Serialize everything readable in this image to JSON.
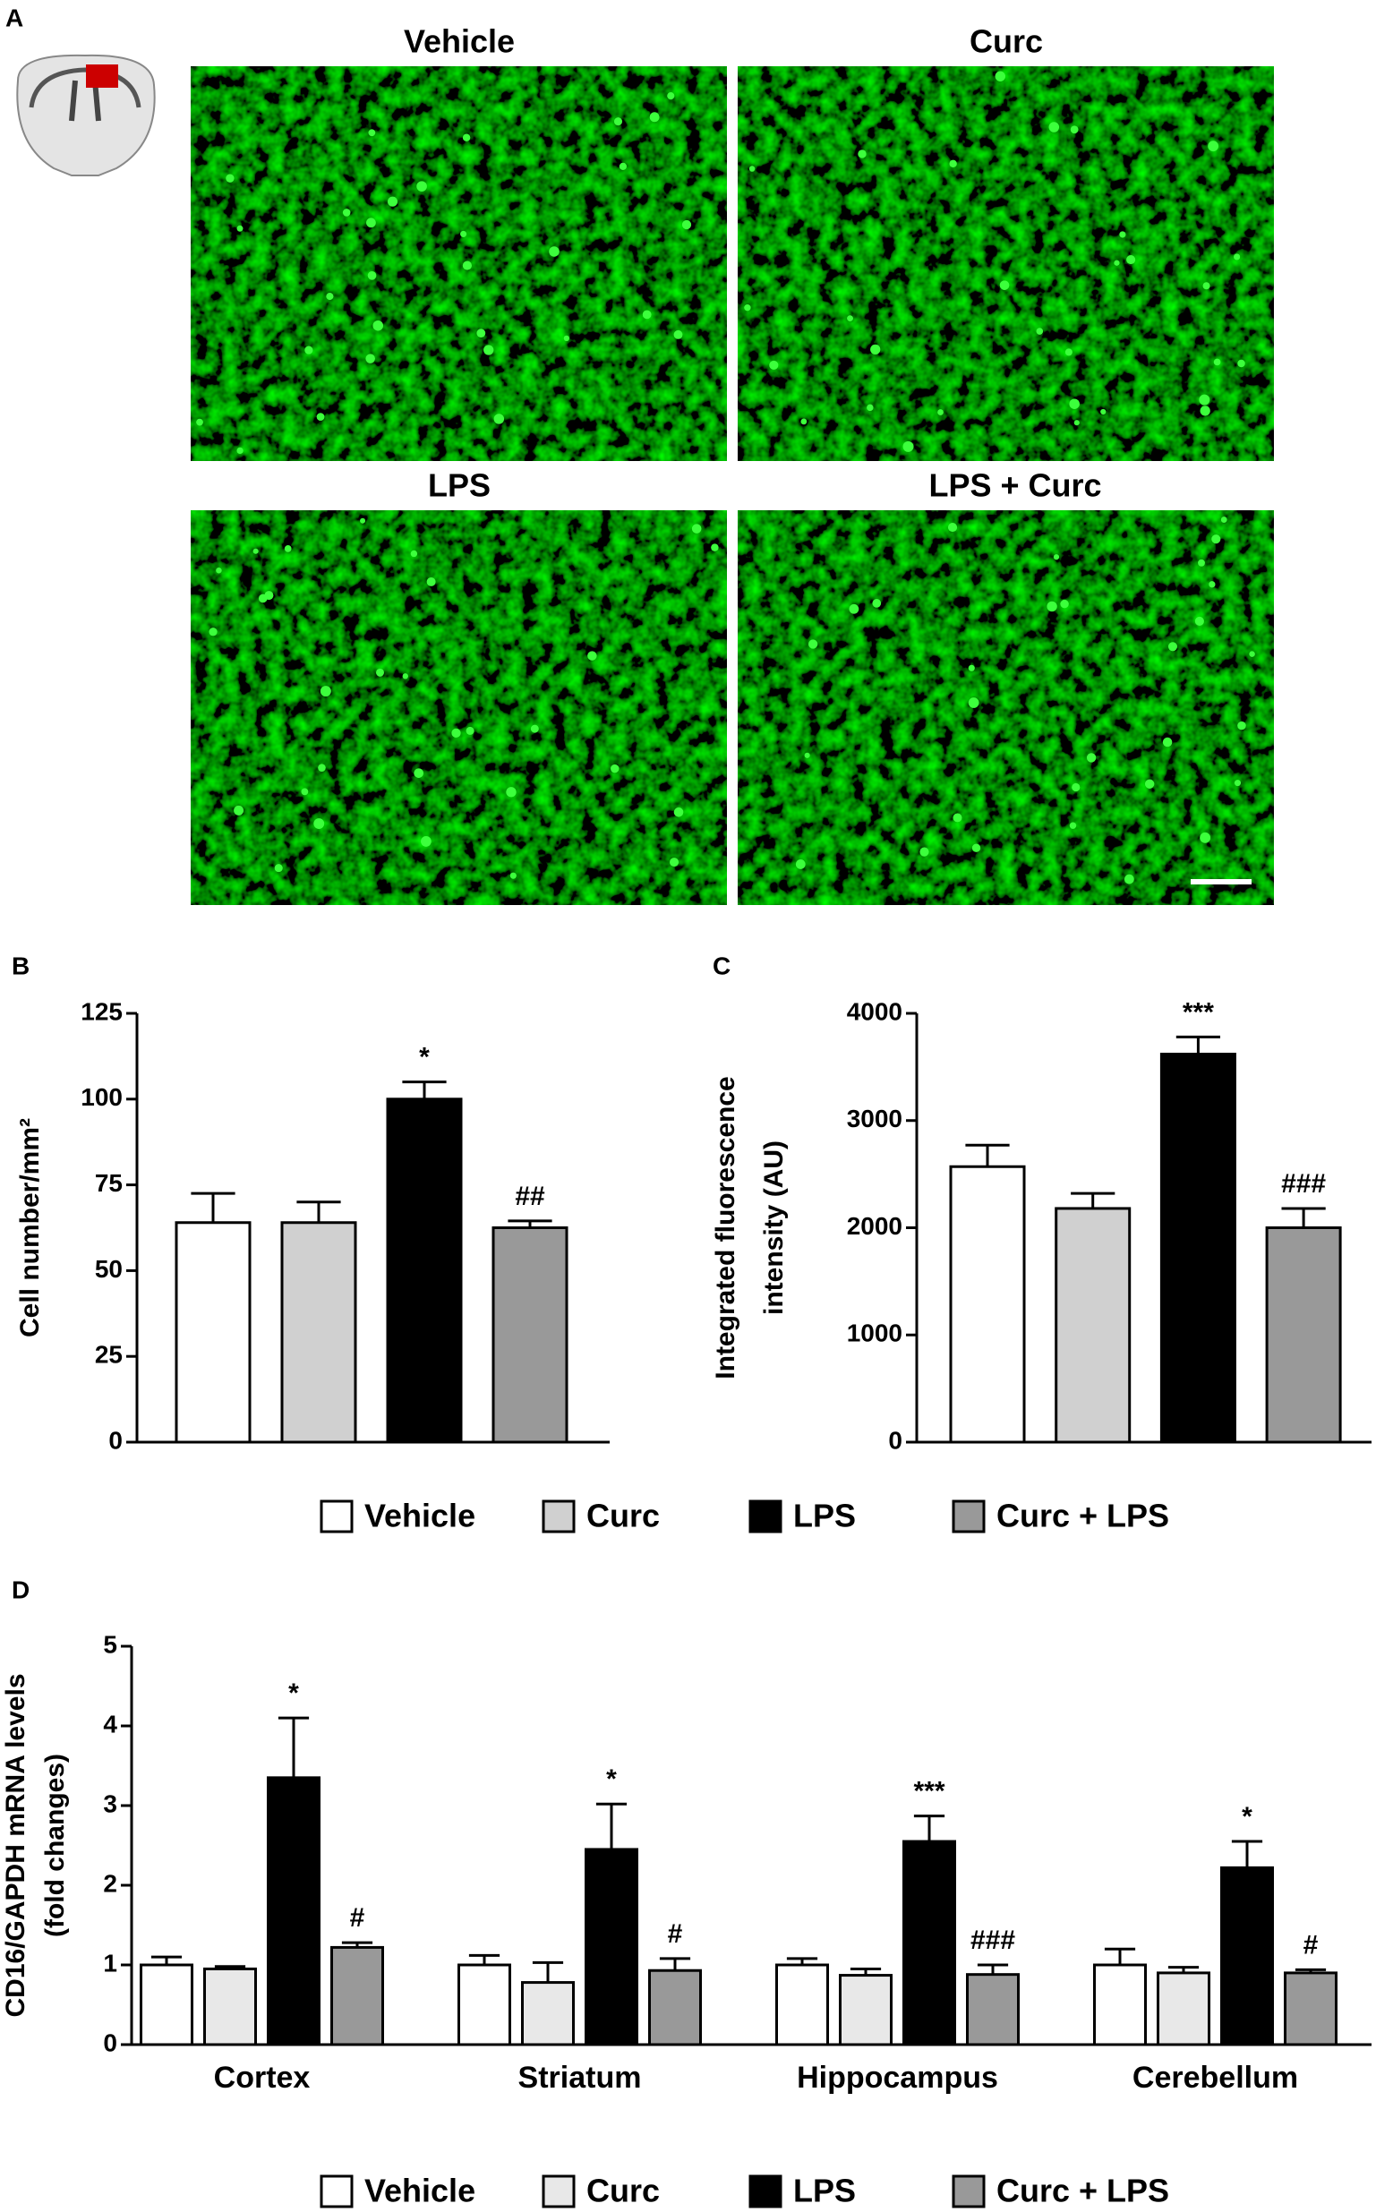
{
  "panel_a": {
    "label": "A",
    "titles": [
      "Vehicle",
      "Curc",
      "LPS",
      "LPS + Curc"
    ]
  },
  "chart_data": [
    {
      "type": "bar",
      "panel_label": "B",
      "ylabel": [
        "Cell number/mm²"
      ],
      "ylim": [
        0,
        125
      ],
      "yticks": [
        0,
        25,
        50,
        75,
        100,
        125
      ],
      "series": [
        {
          "name": "Vehicle",
          "color": "#ffffff",
          "values": [
            64
          ],
          "errors": [
            8.5
          ]
        },
        {
          "name": "Curc",
          "color": "#d0d0d0",
          "values": [
            64
          ],
          "errors": [
            6
          ]
        },
        {
          "name": "LPS",
          "color": "#000000",
          "values": [
            100
          ],
          "errors": [
            5
          ],
          "annotations": [
            "*"
          ]
        },
        {
          "name": "Curc + LPS",
          "color": "#999999",
          "values": [
            62.5
          ],
          "errors": [
            2
          ],
          "annotations": [
            "##"
          ]
        }
      ]
    },
    {
      "type": "bar",
      "panel_label": "C",
      "ylabel": [
        "Integrated fluorescence",
        "intensity (AU)"
      ],
      "ylim": [
        0,
        4000
      ],
      "yticks": [
        0,
        1000,
        2000,
        3000,
        4000
      ],
      "series": [
        {
          "color": "#ffffff",
          "values": [
            2570
          ],
          "errors": [
            200
          ]
        },
        {
          "color": "#d0d0d0",
          "values": [
            2180
          ],
          "errors": [
            140
          ]
        },
        {
          "color": "#000000",
          "values": [
            3620
          ],
          "errors": [
            160
          ],
          "annotations": [
            "***"
          ]
        },
        {
          "color": "#999999",
          "values": [
            2000
          ],
          "errors": [
            180
          ],
          "annotations": [
            "###"
          ]
        }
      ]
    },
    {
      "type": "bar",
      "panel_label": "D",
      "ylabel": [
        "CD16/GAPDH mRNA levels",
        "(fold changes)"
      ],
      "ylim": [
        0,
        5
      ],
      "yticks": [
        0,
        1,
        2,
        3,
        4,
        5
      ],
      "categories": [
        "Cortex",
        "Striatum",
        "Hippocampus",
        "Cerebellum"
      ],
      "series": [
        {
          "name": "Vehicle",
          "color": "#ffffff",
          "values": [
            1.0,
            1.0,
            1.0,
            1.0
          ],
          "errors": [
            0.1,
            0.12,
            0.08,
            0.2
          ]
        },
        {
          "name": "Curc",
          "color": "#e8e8e8",
          "values": [
            0.95,
            0.78,
            0.87,
            0.9
          ],
          "errors": [
            0.03,
            0.25,
            0.08,
            0.07
          ]
        },
        {
          "name": "LPS",
          "color": "#000000",
          "values": [
            3.35,
            2.45,
            2.55,
            2.22
          ],
          "errors": [
            0.75,
            0.57,
            0.32,
            0.33
          ],
          "annotations": [
            "*",
            "*",
            "***",
            "*"
          ]
        },
        {
          "name": "Curc + LPS",
          "color": "#999999",
          "values": [
            1.22,
            0.93,
            0.88,
            0.9
          ],
          "errors": [
            0.06,
            0.15,
            0.12,
            0.04
          ],
          "annotations": [
            "#",
            "#",
            "###",
            "#"
          ]
        }
      ]
    }
  ]
}
